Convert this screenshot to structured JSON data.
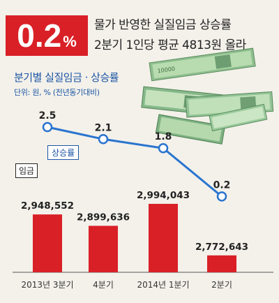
{
  "headline": {
    "badge_number": "0.2",
    "badge_unit": "%",
    "line1": "물가 반영한 실질임금 상승률",
    "line2": "2분기 1인당 평균 4813원 올라"
  },
  "chart_title": "분기별 실질임금 · 상승률",
  "unit_note": "단위: 원, % (전년동기대비)",
  "chart_data": {
    "type": "bar",
    "categories": [
      "2013년 3분기",
      "4분기",
      "2014년 1분기",
      "2분기"
    ],
    "series": [
      {
        "name": "임금",
        "type": "bar",
        "values": [
          2948552,
          2899636,
          2994043,
          2772643
        ],
        "labels": [
          "2,948,552",
          "2,899,636",
          "2,994,043",
          "2,772,643"
        ],
        "color": "#d92027"
      },
      {
        "name": "상승률",
        "type": "line",
        "values": [
          2.5,
          2.1,
          1.8,
          0.2
        ],
        "labels": [
          "2.5",
          "2.1",
          "1.8",
          "0.2"
        ],
        "color": "#2a74cf"
      }
    ]
  },
  "colors": {
    "accent_red": "#d92027",
    "line_blue": "#2a74cf",
    "label_blue": "#1d55a5",
    "background": "#f3f1ea"
  },
  "decoration": {
    "image": "stacks of won banknotes",
    "banknote_text": "10000"
  }
}
